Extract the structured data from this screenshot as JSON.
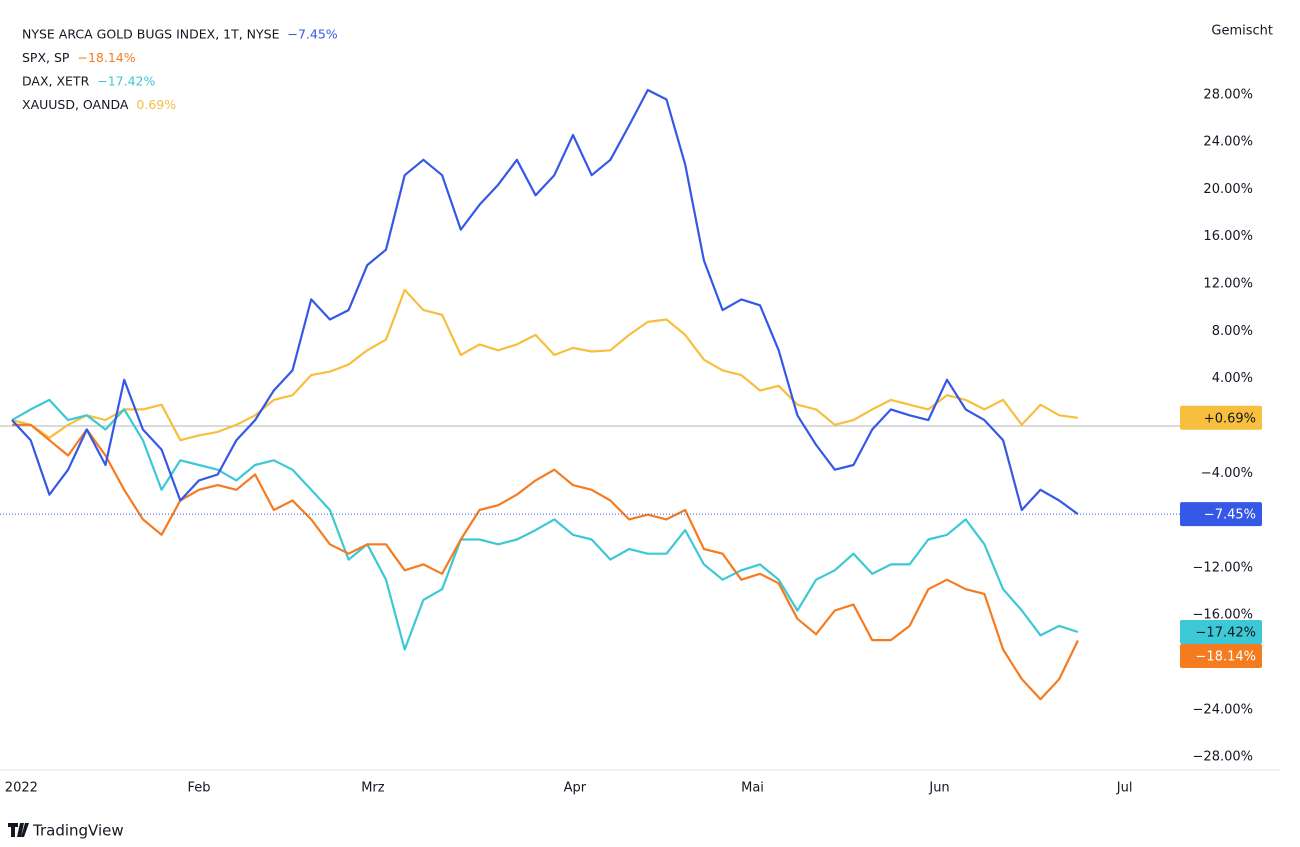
{
  "chart_data": {
    "type": "line",
    "scale_label": "Gemischt",
    "brand": "TradingView",
    "ylim": [
      -29,
      34
    ],
    "yticks": [
      {
        "value": 28,
        "label": "28.00%"
      },
      {
        "value": 24,
        "label": "24.00%"
      },
      {
        "value": 20,
        "label": "20.00%"
      },
      {
        "value": 16,
        "label": "16.00%"
      },
      {
        "value": 12,
        "label": "12.00%"
      },
      {
        "value": 8,
        "label": "8.00%"
      },
      {
        "value": 4,
        "label": "4.00%"
      },
      {
        "value": -4,
        "label": "−4.00%"
      },
      {
        "value": -12,
        "label": "−12.00%"
      },
      {
        "value": -16,
        "label": "−16.00%"
      },
      {
        "value": -24,
        "label": "−24.00%"
      },
      {
        "value": -28,
        "label": "−28.00%"
      }
    ],
    "xlim": [
      0,
      62.5
    ],
    "xticks": [
      {
        "value": 0.5,
        "label": "2022"
      },
      {
        "value": 10,
        "label": "Feb"
      },
      {
        "value": 19.3,
        "label": "Mrz"
      },
      {
        "value": 30.1,
        "label": "Apr"
      },
      {
        "value": 39.6,
        "label": "Mai"
      },
      {
        "value": 49.6,
        "label": "Jun"
      },
      {
        "value": 59.5,
        "label": "Jul"
      }
    ],
    "series": [
      {
        "name": "NYSE ARCA GOLD BUGS INDEX, 1T, NYSE",
        "legend_label": "−7.45%",
        "badge_label": "−7.45%",
        "color": "#3558e6",
        "badge_text": "#ffffff",
        "price_line": true,
        "values": [
          0.5,
          -1.2,
          -5.8,
          -3.7,
          -0.3,
          -3.3,
          3.9,
          -0.3,
          -2.0,
          -6.3,
          -4.6,
          -4.1,
          -1.2,
          0.5,
          3.0,
          4.7,
          10.7,
          9.0,
          9.8,
          13.6,
          14.9,
          21.2,
          22.5,
          21.2,
          16.6,
          18.7,
          20.4,
          22.5,
          19.5,
          21.2,
          24.6,
          21.2,
          22.5,
          25.4,
          28.4,
          27.6,
          22.1,
          14.0,
          9.8,
          10.7,
          10.2,
          6.4,
          0.9,
          -1.6,
          -3.7,
          -3.3,
          -0.3,
          1.4,
          0.9,
          0.5,
          3.9,
          1.4,
          0.5,
          -1.2,
          -7.1,
          -5.4,
          -6.3,
          -7.45
        ]
      },
      {
        "name": "SPX, SP",
        "legend_label": "−18.14%",
        "badge_label": "−18.14%",
        "color": "#f57b20",
        "badge_text": "#ffffff",
        "price_line": false,
        "values": [
          0.1,
          0.1,
          -1.2,
          -2.5,
          -0.3,
          -2.5,
          -5.4,
          -7.9,
          -9.2,
          -6.3,
          -5.4,
          -5.0,
          -5.4,
          -4.1,
          -7.1,
          -6.3,
          -7.9,
          -10.0,
          -10.8,
          -10.0,
          -10.0,
          -12.2,
          -11.7,
          -12.5,
          -9.6,
          -7.1,
          -6.7,
          -5.8,
          -4.6,
          -3.7,
          -5.0,
          -5.4,
          -6.3,
          -7.9,
          -7.5,
          -7.9,
          -7.1,
          -10.4,
          -10.8,
          -13.0,
          -12.5,
          -13.3,
          -16.3,
          -17.6,
          -15.6,
          -15.1,
          -18.1,
          -18.1,
          -16.9,
          -13.8,
          -13.0,
          -13.8,
          -14.2,
          -18.9,
          -21.4,
          -23.1,
          -21.4,
          -18.14
        ]
      },
      {
        "name": "DAX, XETR",
        "legend_label": "−17.42%",
        "badge_label": "−17.42%",
        "color": "#3cc8d4",
        "badge_text": "#131722",
        "price_line": false,
        "values": [
          0.5,
          1.4,
          2.2,
          0.5,
          0.9,
          -0.3,
          1.4,
          -1.2,
          -5.4,
          -2.9,
          -3.3,
          -3.7,
          -4.6,
          -3.3,
          -2.9,
          -3.7,
          -5.4,
          -7.1,
          -11.3,
          -10.0,
          -13.0,
          -18.9,
          -14.7,
          -13.8,
          -9.6,
          -9.6,
          -10.0,
          -9.6,
          -8.8,
          -7.9,
          -9.2,
          -9.6,
          -11.3,
          -10.4,
          -10.8,
          -10.8,
          -8.8,
          -11.7,
          -13.0,
          -12.2,
          -11.7,
          -13.0,
          -15.6,
          -13.0,
          -12.2,
          -10.8,
          -12.5,
          -11.7,
          -11.7,
          -9.6,
          -9.2,
          -7.9,
          -10.0,
          -13.8,
          -15.6,
          -17.7,
          -16.9,
          -17.42
        ]
      },
      {
        "name": "XAUUSD, OANDA",
        "legend_label": "0.69%",
        "badge_label": "+0.69%",
        "color": "#f7bf3d",
        "badge_text": "#131722",
        "price_line": false,
        "values": [
          0.5,
          0.1,
          -1.0,
          0.1,
          0.9,
          0.5,
          1.4,
          1.4,
          1.8,
          -1.2,
          -0.8,
          -0.5,
          0.1,
          0.9,
          2.2,
          2.6,
          4.3,
          4.6,
          5.2,
          6.4,
          7.3,
          11.5,
          9.8,
          9.4,
          6.0,
          6.9,
          6.4,
          6.9,
          7.7,
          6.0,
          6.6,
          6.3,
          6.4,
          7.7,
          8.8,
          9.0,
          7.7,
          5.6,
          4.7,
          4.3,
          3.0,
          3.4,
          1.8,
          1.4,
          0.1,
          0.5,
          1.4,
          2.2,
          1.8,
          1.4,
          2.6,
          2.2,
          1.4,
          2.2,
          0.1,
          1.8,
          0.9,
          0.69
        ]
      }
    ]
  }
}
